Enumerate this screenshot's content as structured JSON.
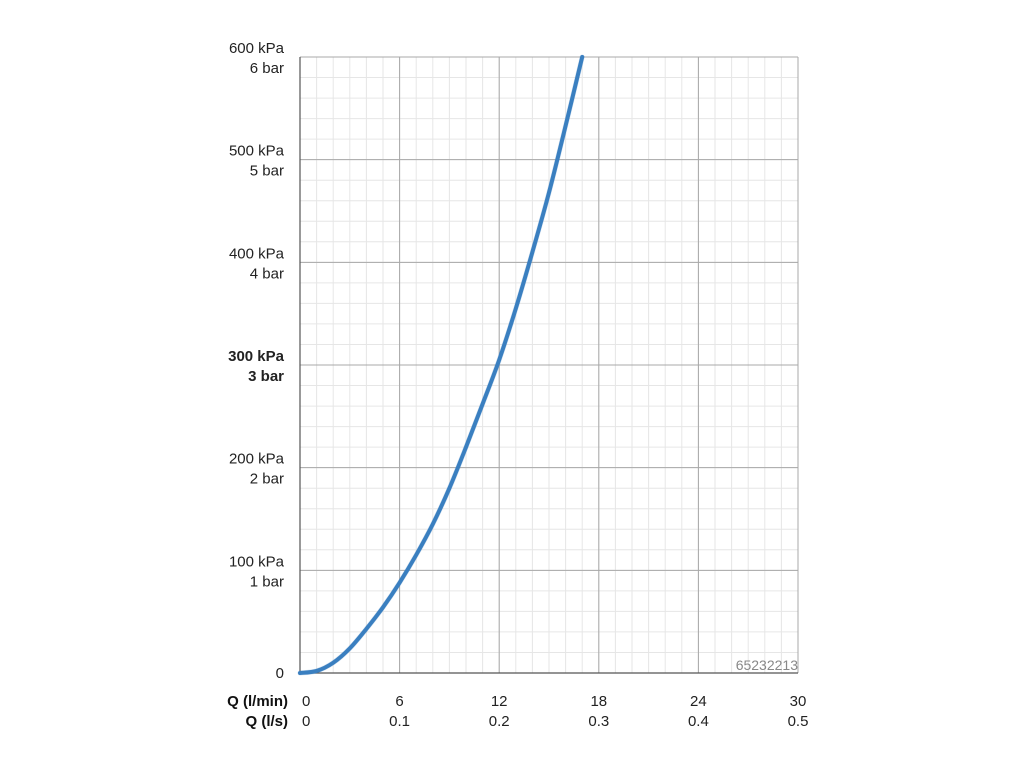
{
  "chart_data": {
    "type": "line",
    "title": "",
    "xlabel": "",
    "ylabel": "",
    "x_axis_rows": [
      {
        "label": "Q (l/min)",
        "ticks": [
          "0",
          "6",
          "12",
          "18",
          "24",
          "30"
        ]
      },
      {
        "label": "Q (l/s)",
        "ticks": [
          "0",
          "0.1",
          "0.2",
          "0.3",
          "0.4",
          "0.5"
        ]
      }
    ],
    "xlim": [
      0,
      30
    ],
    "ylim": [
      0,
      600
    ],
    "y_ticks": [
      {
        "value": 0,
        "kpa": "0",
        "bar": "",
        "bold": false
      },
      {
        "value": 100,
        "kpa": "100 kPa",
        "bar": "1 bar",
        "bold": false
      },
      {
        "value": 200,
        "kpa": "200 kPa",
        "bar": "2 bar",
        "bold": false
      },
      {
        "value": 300,
        "kpa": "300 kPa",
        "bar": "3 bar",
        "bold": true
      },
      {
        "value": 400,
        "kpa": "400 kPa",
        "bar": "4 bar",
        "bold": false
      },
      {
        "value": 500,
        "kpa": "500 kPa",
        "bar": "5 bar",
        "bold": false
      },
      {
        "value": 600,
        "kpa": "600 kPa",
        "bar": "6 bar",
        "bold": false
      }
    ],
    "grid": true,
    "legend": "none",
    "series": [
      {
        "color": "#3a7fc0",
        "x": [
          0,
          1,
          2,
          3,
          4,
          5,
          6,
          7,
          8,
          9,
          10,
          11,
          12,
          13,
          14,
          15,
          16,
          17
        ],
        "y": [
          0,
          2,
          10,
          24,
          43,
          64,
          88,
          115,
          145,
          180,
          220,
          262,
          305,
          355,
          410,
          468,
          533,
          600
        ]
      }
    ]
  },
  "watermark": "65232213"
}
